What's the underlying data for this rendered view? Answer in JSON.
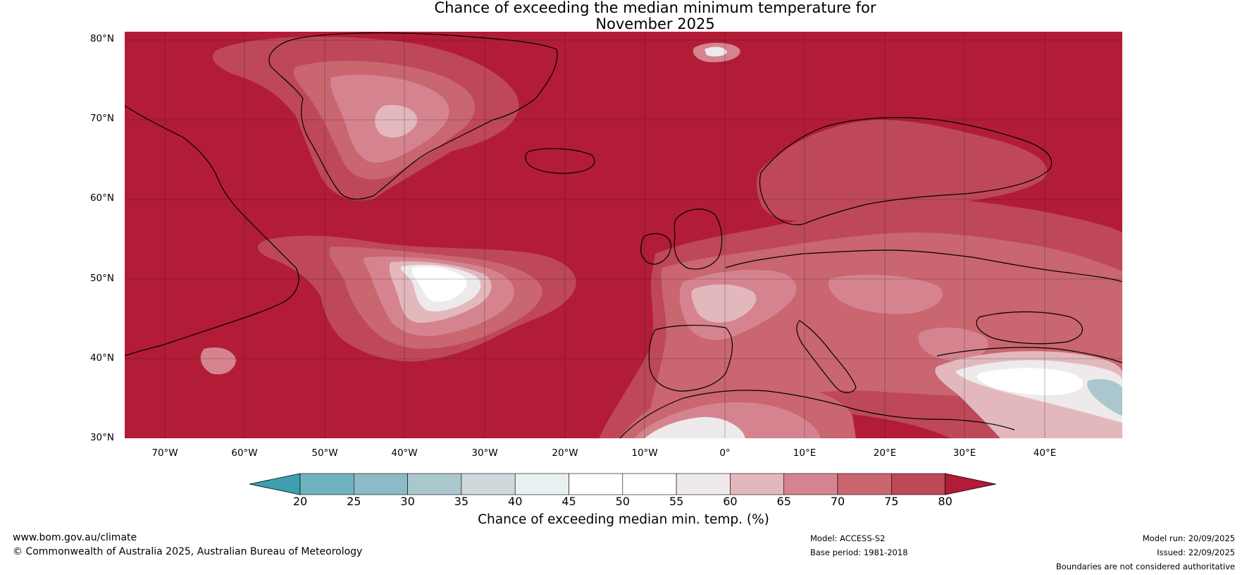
{
  "title_line1": "Chance of exceeding the median minimum temperature for",
  "title_line2": "November 2025",
  "lat_labels": [
    "80°N",
    "70°N",
    "60°N",
    "50°N",
    "40°N",
    "30°N"
  ],
  "lon_labels": [
    "70°W",
    "60°W",
    "50°W",
    "40°W",
    "30°W",
    "20°W",
    "10°W",
    "0°",
    "10°E",
    "20°E",
    "30°E",
    "40°E"
  ],
  "colorbar": {
    "ticks": [
      "20",
      "25",
      "30",
      "35",
      "40",
      "45",
      "50",
      "55",
      "60",
      "65",
      "70",
      "75",
      "80"
    ],
    "colors": [
      "#3d9fb0",
      "#6fb1bf",
      "#8cbac6",
      "#a9c7cd",
      "#ced9dc",
      "#e9f0f1",
      "#ffffff",
      "#ffffff",
      "#eeeaeb",
      "#e3b8bd",
      "#d5848f",
      "#c96670",
      "#be4858",
      "#b21c37"
    ],
    "label": "Chance of exceeding median min. temp. (%)"
  },
  "map_colors": {
    "base": "#b21c37",
    "c75": "#be4858",
    "c70": "#c96670",
    "c65": "#d5848f",
    "c60": "#e3b8bd",
    "c55": "#eeeaeb",
    "c50": "#ffffff",
    "c40": "#a9c7cd",
    "coast": "#000000",
    "border": "#8a8a8a",
    "grid": "#333333"
  },
  "footer": {
    "website": "www.bom.gov.au/climate",
    "copyright": "© Commonwealth of Australia 2025, Australian Bureau of Meteorology",
    "model": "Model: ACCESS-S2",
    "base_period": "Base period: 1981-2018",
    "model_run": "Model run: 20/09/2025",
    "issued": "Issued: 22/09/2025",
    "disclaimer": "Boundaries are not considered authoritative"
  }
}
